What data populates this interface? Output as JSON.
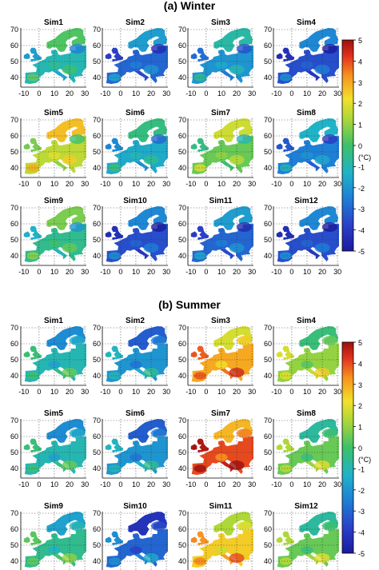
{
  "chart_data": [
    {
      "type": "heatmap",
      "title": "(a) Winter",
      "panels": [
        "Sim1",
        "Sim2",
        "Sim3",
        "Sim4",
        "Sim5",
        "Sim6",
        "Sim7",
        "Sim8",
        "Sim9",
        "Sim10",
        "Sim11",
        "Sim12"
      ],
      "panel_mean_values": [
        -1.0,
        -3.0,
        -2.0,
        -3.5,
        1.5,
        -1.5,
        0.5,
        -2.5,
        -0.5,
        -3.5,
        -3.0,
        -3.5
      ],
      "x_ticks": [
        "-10",
        "0",
        "10",
        "20",
        "30"
      ],
      "y_ticks": [
        "40",
        "50",
        "60",
        "70"
      ],
      "xlim": [
        -12,
        31
      ],
      "ylim": [
        34,
        71
      ],
      "colorbar": {
        "ticks": [
          "5",
          "4",
          "3",
          "2",
          "1",
          "0",
          "-1",
          "-2",
          "-3",
          "-4",
          "-5"
        ],
        "unit": "(°C)",
        "range": [
          -5,
          5
        ]
      },
      "grid": true
    },
    {
      "type": "heatmap",
      "title": "(b) Summer",
      "panels": [
        "Sim1",
        "Sim2",
        "Sim3",
        "Sim4",
        "Sim5",
        "Sim6",
        "Sim7",
        "Sim8",
        "Sim9",
        "Sim10",
        "Sim11",
        "Sim12"
      ],
      "panel_mean_values": [
        -1.0,
        -2.0,
        3.0,
        1.0,
        -1.0,
        -2.0,
        4.0,
        0.5,
        -0.5,
        -3.0,
        2.5,
        0.5
      ],
      "x_ticks": [
        "-10",
        "0",
        "10",
        "20",
        "30"
      ],
      "y_ticks": [
        "40",
        "50",
        "60",
        "70"
      ],
      "xlim": [
        -12,
        31
      ],
      "ylim": [
        34,
        71
      ],
      "colorbar": {
        "ticks": [
          "5",
          "4",
          "3",
          "2",
          "1",
          "0",
          "-1",
          "-2",
          "-3",
          "-4",
          "-5"
        ],
        "unit": "(°C)",
        "range": [
          -5,
          5
        ]
      },
      "grid": true
    }
  ]
}
